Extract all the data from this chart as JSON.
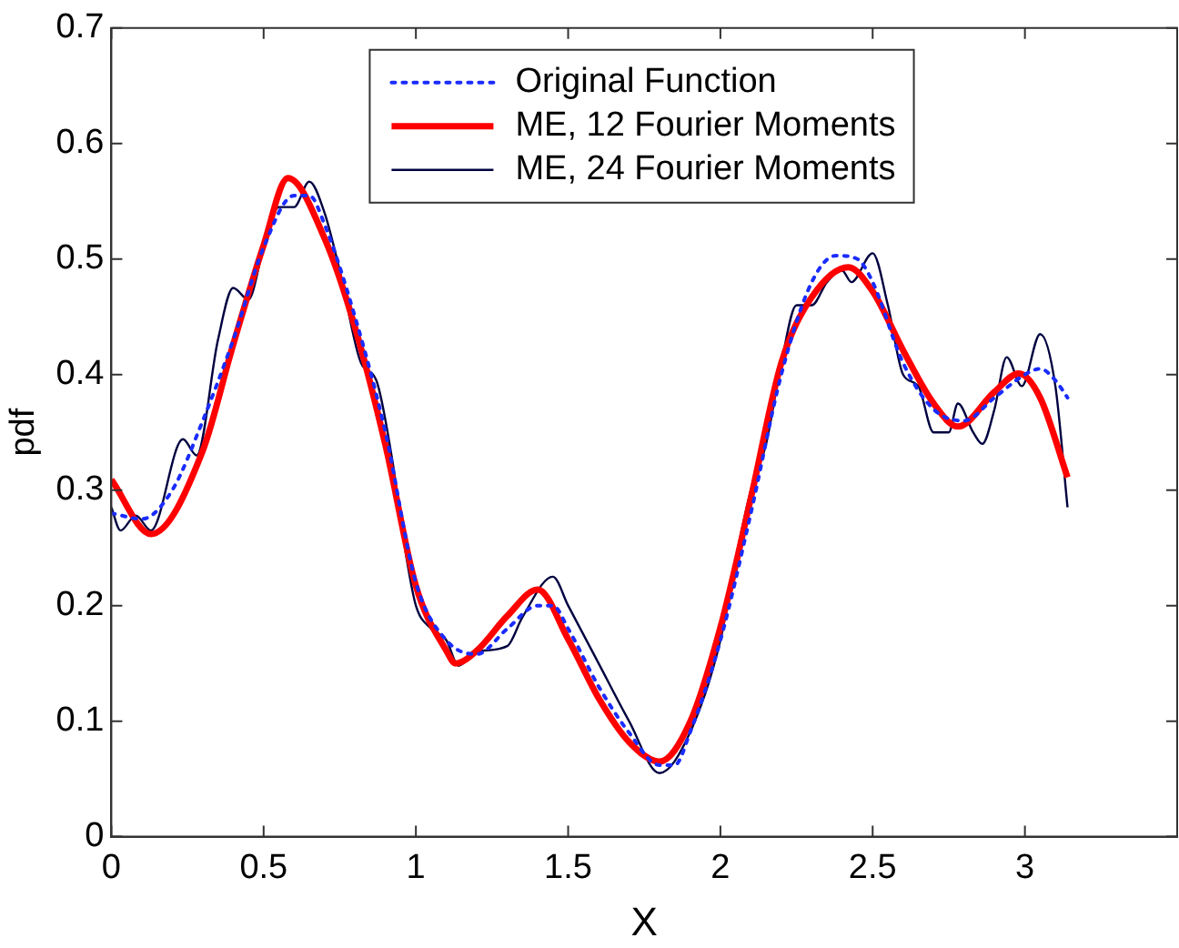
{
  "chart_data": {
    "type": "line",
    "xlabel": "X",
    "ylabel": "pdf",
    "xlim": [
      0,
      3.5
    ],
    "xticks": [
      0,
      0.5,
      1,
      1.5,
      2,
      2.5,
      3
    ],
    "ylim": [
      0,
      0.7
    ],
    "yticks": [
      0,
      0.1,
      0.2,
      0.3,
      0.4,
      0.5,
      0.6,
      0.7
    ],
    "grid": false,
    "legend": "top",
    "marker": "none",
    "series": [
      {
        "name": "Original Function",
        "color": "#1a2cff",
        "line_style": "dotted",
        "x": [
          0,
          0.1,
          0.2,
          0.3,
          0.4,
          0.5,
          0.6,
          0.65,
          0.7,
          0.8,
          0.9,
          1.0,
          1.1,
          1.2,
          1.3,
          1.4,
          1.45,
          1.5,
          1.6,
          1.7,
          1.8,
          1.85,
          1.9,
          2.0,
          2.1,
          2.2,
          2.3,
          2.38,
          2.45,
          2.5,
          2.6,
          2.7,
          2.8,
          2.9,
          3.0,
          3.05,
          3.1,
          3.14
        ],
        "values": [
          0.28,
          0.275,
          0.3,
          0.36,
          0.43,
          0.51,
          0.555,
          0.555,
          0.53,
          0.45,
          0.35,
          0.22,
          0.17,
          0.158,
          0.18,
          0.2,
          0.2,
          0.18,
          0.13,
          0.09,
          0.062,
          0.062,
          0.09,
          0.17,
          0.28,
          0.4,
          0.48,
          0.503,
          0.5,
          0.48,
          0.41,
          0.37,
          0.36,
          0.38,
          0.4,
          0.405,
          0.395,
          0.38
        ]
      },
      {
        "name": "ME, 12 Fourier Moments",
        "color": "#ff0000",
        "line_style": "solid",
        "x": [
          0,
          0.13,
          0.3,
          0.4,
          0.5,
          0.58,
          0.7,
          0.8,
          0.9,
          1.0,
          1.1,
          1.13,
          1.2,
          1.3,
          1.4,
          1.5,
          1.6,
          1.7,
          1.8,
          1.9,
          2.0,
          2.1,
          2.2,
          2.3,
          2.42,
          2.5,
          2.6,
          2.7,
          2.78,
          2.9,
          2.98,
          3.05,
          3.14
        ],
        "values": [
          0.309,
          0.262,
          0.334,
          0.426,
          0.512,
          0.57,
          0.518,
          0.441,
          0.339,
          0.217,
          0.161,
          0.15,
          0.161,
          0.191,
          0.214,
          0.171,
          0.12,
          0.082,
          0.065,
          0.099,
          0.181,
          0.293,
          0.41,
          0.467,
          0.493,
          0.472,
          0.421,
          0.375,
          0.355,
          0.385,
          0.401,
          0.38,
          0.311
        ]
      },
      {
        "name": "ME, 24 Fourier Moments",
        "color": "#000040",
        "line_style": "solid",
        "x": [
          0,
          0.03,
          0.08,
          0.13,
          0.235,
          0.28,
          0.35,
          0.4,
          0.45,
          0.5,
          0.55,
          0.6,
          0.65,
          0.7,
          0.75,
          0.82,
          0.87,
          0.92,
          0.97,
          1.0,
          1.05,
          1.1,
          1.14,
          1.2,
          1.3,
          1.35,
          1.45,
          1.5,
          1.6,
          1.7,
          1.8,
          1.9,
          2.0,
          2.05,
          2.1,
          2.15,
          2.2,
          2.25,
          2.3,
          2.35,
          2.4,
          2.43,
          2.5,
          2.55,
          2.6,
          2.65,
          2.7,
          2.75,
          2.78,
          2.83,
          2.86,
          2.9,
          2.94,
          2.99,
          3.05,
          3.1,
          3.14
        ],
        "values": [
          0.285,
          0.265,
          0.278,
          0.265,
          0.344,
          0.33,
          0.43,
          0.475,
          0.465,
          0.51,
          0.545,
          0.545,
          0.567,
          0.54,
          0.49,
          0.41,
          0.395,
          0.33,
          0.24,
          0.2,
          0.18,
          0.17,
          0.148,
          0.16,
          0.165,
          0.19,
          0.225,
          0.2,
          0.15,
          0.1,
          0.055,
          0.09,
          0.17,
          0.24,
          0.3,
          0.34,
          0.41,
          0.46,
          0.46,
          0.48,
          0.49,
          0.48,
          0.505,
          0.46,
          0.4,
          0.39,
          0.35,
          0.35,
          0.375,
          0.35,
          0.34,
          0.37,
          0.415,
          0.39,
          0.435,
          0.39,
          0.285
        ]
      }
    ]
  }
}
